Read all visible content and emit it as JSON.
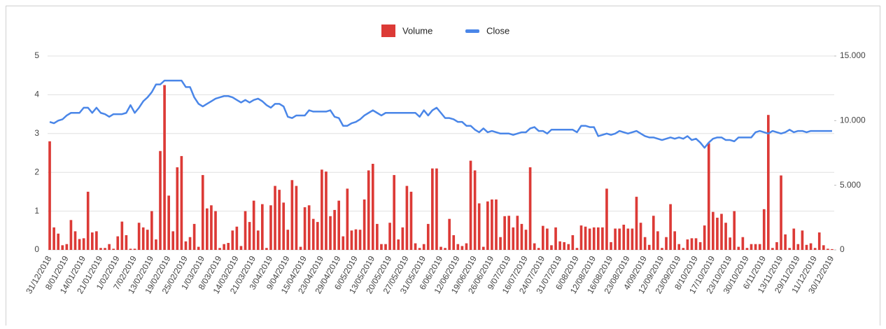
{
  "chart_data": {
    "type": "bar",
    "legend": "top",
    "grid": true,
    "ylim": [
      0,
      5
    ],
    "yticks": [
      0,
      1,
      2,
      3,
      4,
      5
    ],
    "y2lim": [
      0,
      15
    ],
    "y2ticks": [
      {
        "value": 0,
        "label": "0"
      },
      {
        "value": 5,
        "label": "5.000"
      },
      {
        "value": 10,
        "label": "10.000"
      },
      {
        "value": 15,
        "label": "15.000"
      }
    ],
    "categories": [
      "31/12/2018",
      null,
      null,
      null,
      "8/01/2019",
      null,
      null,
      null,
      "14/01/2019",
      null,
      null,
      null,
      "21/01/2019",
      null,
      null,
      null,
      "1/02/2019",
      null,
      null,
      null,
      "7/02/2019",
      null,
      null,
      null,
      "13/02/2019",
      null,
      null,
      null,
      "19/02/2019",
      null,
      null,
      null,
      "25/02/2019",
      null,
      null,
      null,
      "1/03/2019",
      null,
      null,
      null,
      "8/03/2019",
      null,
      null,
      null,
      "14/03/2019",
      null,
      null,
      null,
      "21/03/2019",
      null,
      null,
      null,
      "3/04/2019",
      null,
      null,
      null,
      "9/04/2019",
      null,
      null,
      null,
      "15/04/2019",
      null,
      null,
      null,
      "23/04/2019",
      null,
      null,
      null,
      "29/04/2019",
      null,
      null,
      null,
      "6/05/2019",
      null,
      null,
      null,
      "13/05/2019",
      null,
      null,
      null,
      "20/05/2019",
      null,
      null,
      null,
      "27/05/2019",
      null,
      null,
      null,
      "31/05/2019",
      null,
      null,
      null,
      "6/06/2019",
      null,
      null,
      null,
      "12/06/2019",
      null,
      null,
      null,
      "19/06/2019",
      null,
      null,
      null,
      "26/06/2019",
      null,
      null,
      null,
      "9/07/2019",
      null,
      null,
      null,
      "16/07/2019",
      null,
      null,
      null,
      "24/07/2019",
      null,
      null,
      null,
      "31/07/2019",
      null,
      null,
      null,
      "6/08/2019",
      null,
      null,
      null,
      "12/08/2019",
      null,
      null,
      null,
      "16/08/2019",
      null,
      null,
      null,
      "23/08/2019",
      null,
      null,
      null,
      "4/09/2019",
      null,
      null,
      null,
      "12/09/2019",
      null,
      null,
      null,
      "23/09/2019",
      null,
      null,
      null,
      "8/10/2019",
      null,
      null,
      null,
      "17/10/2019",
      null,
      null,
      null,
      "23/10/2019",
      null,
      null,
      null,
      "30/10/2019",
      null,
      null,
      null,
      "6/11/2019",
      null,
      null,
      null,
      "13/11/2019",
      null,
      null,
      null,
      "29/11/2019",
      null,
      null,
      null,
      "11/12/2019",
      null,
      null,
      null,
      "30/12/2019"
    ],
    "series": [
      {
        "name": "Volume",
        "type": "bar",
        "color": "#dc3a36",
        "values": [
          2.8,
          0.58,
          0.42,
          0.12,
          0.15,
          0.77,
          0.48,
          0.28,
          0.3,
          1.5,
          0.45,
          0.48,
          0.05,
          0.05,
          0.15,
          0.03,
          0.35,
          0.73,
          0.38,
          0.03,
          0.03,
          0.7,
          0.58,
          0.52,
          1.0,
          0.27,
          2.55,
          4.25,
          1.4,
          0.48,
          2.13,
          2.42,
          0.22,
          0.33,
          0.67,
          0.08,
          1.93,
          1.07,
          1.15,
          1.0,
          0.05,
          0.15,
          0.18,
          0.5,
          0.6,
          0.1,
          1.0,
          0.72,
          1.27,
          0.5,
          1.18,
          0.05,
          1.15,
          1.65,
          1.55,
          1.22,
          0.52,
          1.8,
          1.65,
          0.08,
          1.1,
          1.15,
          0.8,
          0.72,
          2.07,
          2.02,
          0.87,
          1.03,
          1.27,
          0.35,
          1.58,
          0.5,
          0.53,
          0.52,
          1.3,
          2.05,
          2.22,
          0.67,
          0.15,
          0.15,
          0.7,
          1.93,
          0.27,
          0.58,
          1.65,
          1.5,
          0.17,
          0.05,
          0.15,
          0.67,
          2.1,
          2.1,
          0.08,
          0.05,
          0.8,
          0.38,
          0.15,
          0.1,
          0.17,
          2.3,
          2.05,
          1.2,
          0.08,
          1.25,
          1.3,
          1.3,
          0.33,
          0.87,
          0.88,
          0.58,
          0.88,
          0.67,
          0.52,
          2.13,
          0.17,
          0.05,
          0.62,
          0.55,
          0.12,
          0.58,
          0.22,
          0.2,
          0.15,
          0.38,
          0.05,
          0.63,
          0.6,
          0.55,
          0.58,
          0.58,
          0.58,
          1.58,
          0.2,
          0.55,
          0.55,
          0.65,
          0.55,
          0.55,
          1.37,
          0.7,
          0.33,
          0.13,
          0.88,
          0.48,
          0.05,
          0.33,
          1.18,
          0.48,
          0.15,
          0.05,
          0.27,
          0.3,
          0.3,
          0.2,
          0.63,
          2.75,
          0.98,
          0.83,
          0.93,
          0.7,
          0.32,
          1.0,
          0.08,
          0.33,
          0.05,
          0.15,
          0.15,
          0.15,
          1.05,
          3.48,
          0.05,
          0.2,
          1.92,
          0.4,
          0.05,
          0.55,
          0.15,
          0.5,
          0.13,
          0.17,
          0.05,
          0.45,
          0.12,
          0.03,
          0.02
        ]
      },
      {
        "name": "Close",
        "type": "line",
        "axis": "y2",
        "color": "#4a86e8",
        "values": [
          9.9,
          9.8,
          10.0,
          10.1,
          10.4,
          10.6,
          10.6,
          10.6,
          11.0,
          11.0,
          10.6,
          11.0,
          10.6,
          10.5,
          10.3,
          10.5,
          10.5,
          10.5,
          10.6,
          11.2,
          10.6,
          11.0,
          11.5,
          11.8,
          12.2,
          12.8,
          12.8,
          13.1,
          13.1,
          13.1,
          13.1,
          13.1,
          12.6,
          12.6,
          11.8,
          11.3,
          11.1,
          11.3,
          11.5,
          11.7,
          11.8,
          11.9,
          11.9,
          11.8,
          11.6,
          11.4,
          11.6,
          11.4,
          11.6,
          11.7,
          11.5,
          11.2,
          11.0,
          11.3,
          11.3,
          11.1,
          10.3,
          10.2,
          10.4,
          10.4,
          10.4,
          10.8,
          10.7,
          10.7,
          10.7,
          10.7,
          10.8,
          10.3,
          10.2,
          9.6,
          9.6,
          9.8,
          9.9,
          10.1,
          10.4,
          10.6,
          10.8,
          10.6,
          10.4,
          10.6,
          10.6,
          10.6,
          10.6,
          10.6,
          10.6,
          10.6,
          10.6,
          10.3,
          10.8,
          10.4,
          10.8,
          11.0,
          10.6,
          10.2,
          10.2,
          10.1,
          9.9,
          9.9,
          9.6,
          9.6,
          9.3,
          9.1,
          9.4,
          9.1,
          9.2,
          9.1,
          9.0,
          9.0,
          9.0,
          8.9,
          9.0,
          9.1,
          9.1,
          9.4,
          9.5,
          9.2,
          9.2,
          9.0,
          9.3,
          9.3,
          9.3,
          9.3,
          9.3,
          9.3,
          9.1,
          9.6,
          9.6,
          9.5,
          9.5,
          8.8,
          8.9,
          9.0,
          8.9,
          9.0,
          9.2,
          9.1,
          9.0,
          9.1,
          9.2,
          9.0,
          8.8,
          8.7,
          8.7,
          8.6,
          8.5,
          8.6,
          8.7,
          8.6,
          8.7,
          8.6,
          8.8,
          8.5,
          8.6,
          8.3,
          7.9,
          8.3,
          8.6,
          8.7,
          8.7,
          8.5,
          8.5,
          8.4,
          8.7,
          8.7,
          8.7,
          8.7,
          9.1,
          9.2,
          9.1,
          9.0,
          9.2,
          9.1,
          9.0,
          9.1,
          9.3,
          9.1,
          9.2,
          9.2,
          9.1,
          9.2,
          9.2,
          9.2,
          9.2,
          9.2,
          9.2
        ]
      }
    ]
  }
}
